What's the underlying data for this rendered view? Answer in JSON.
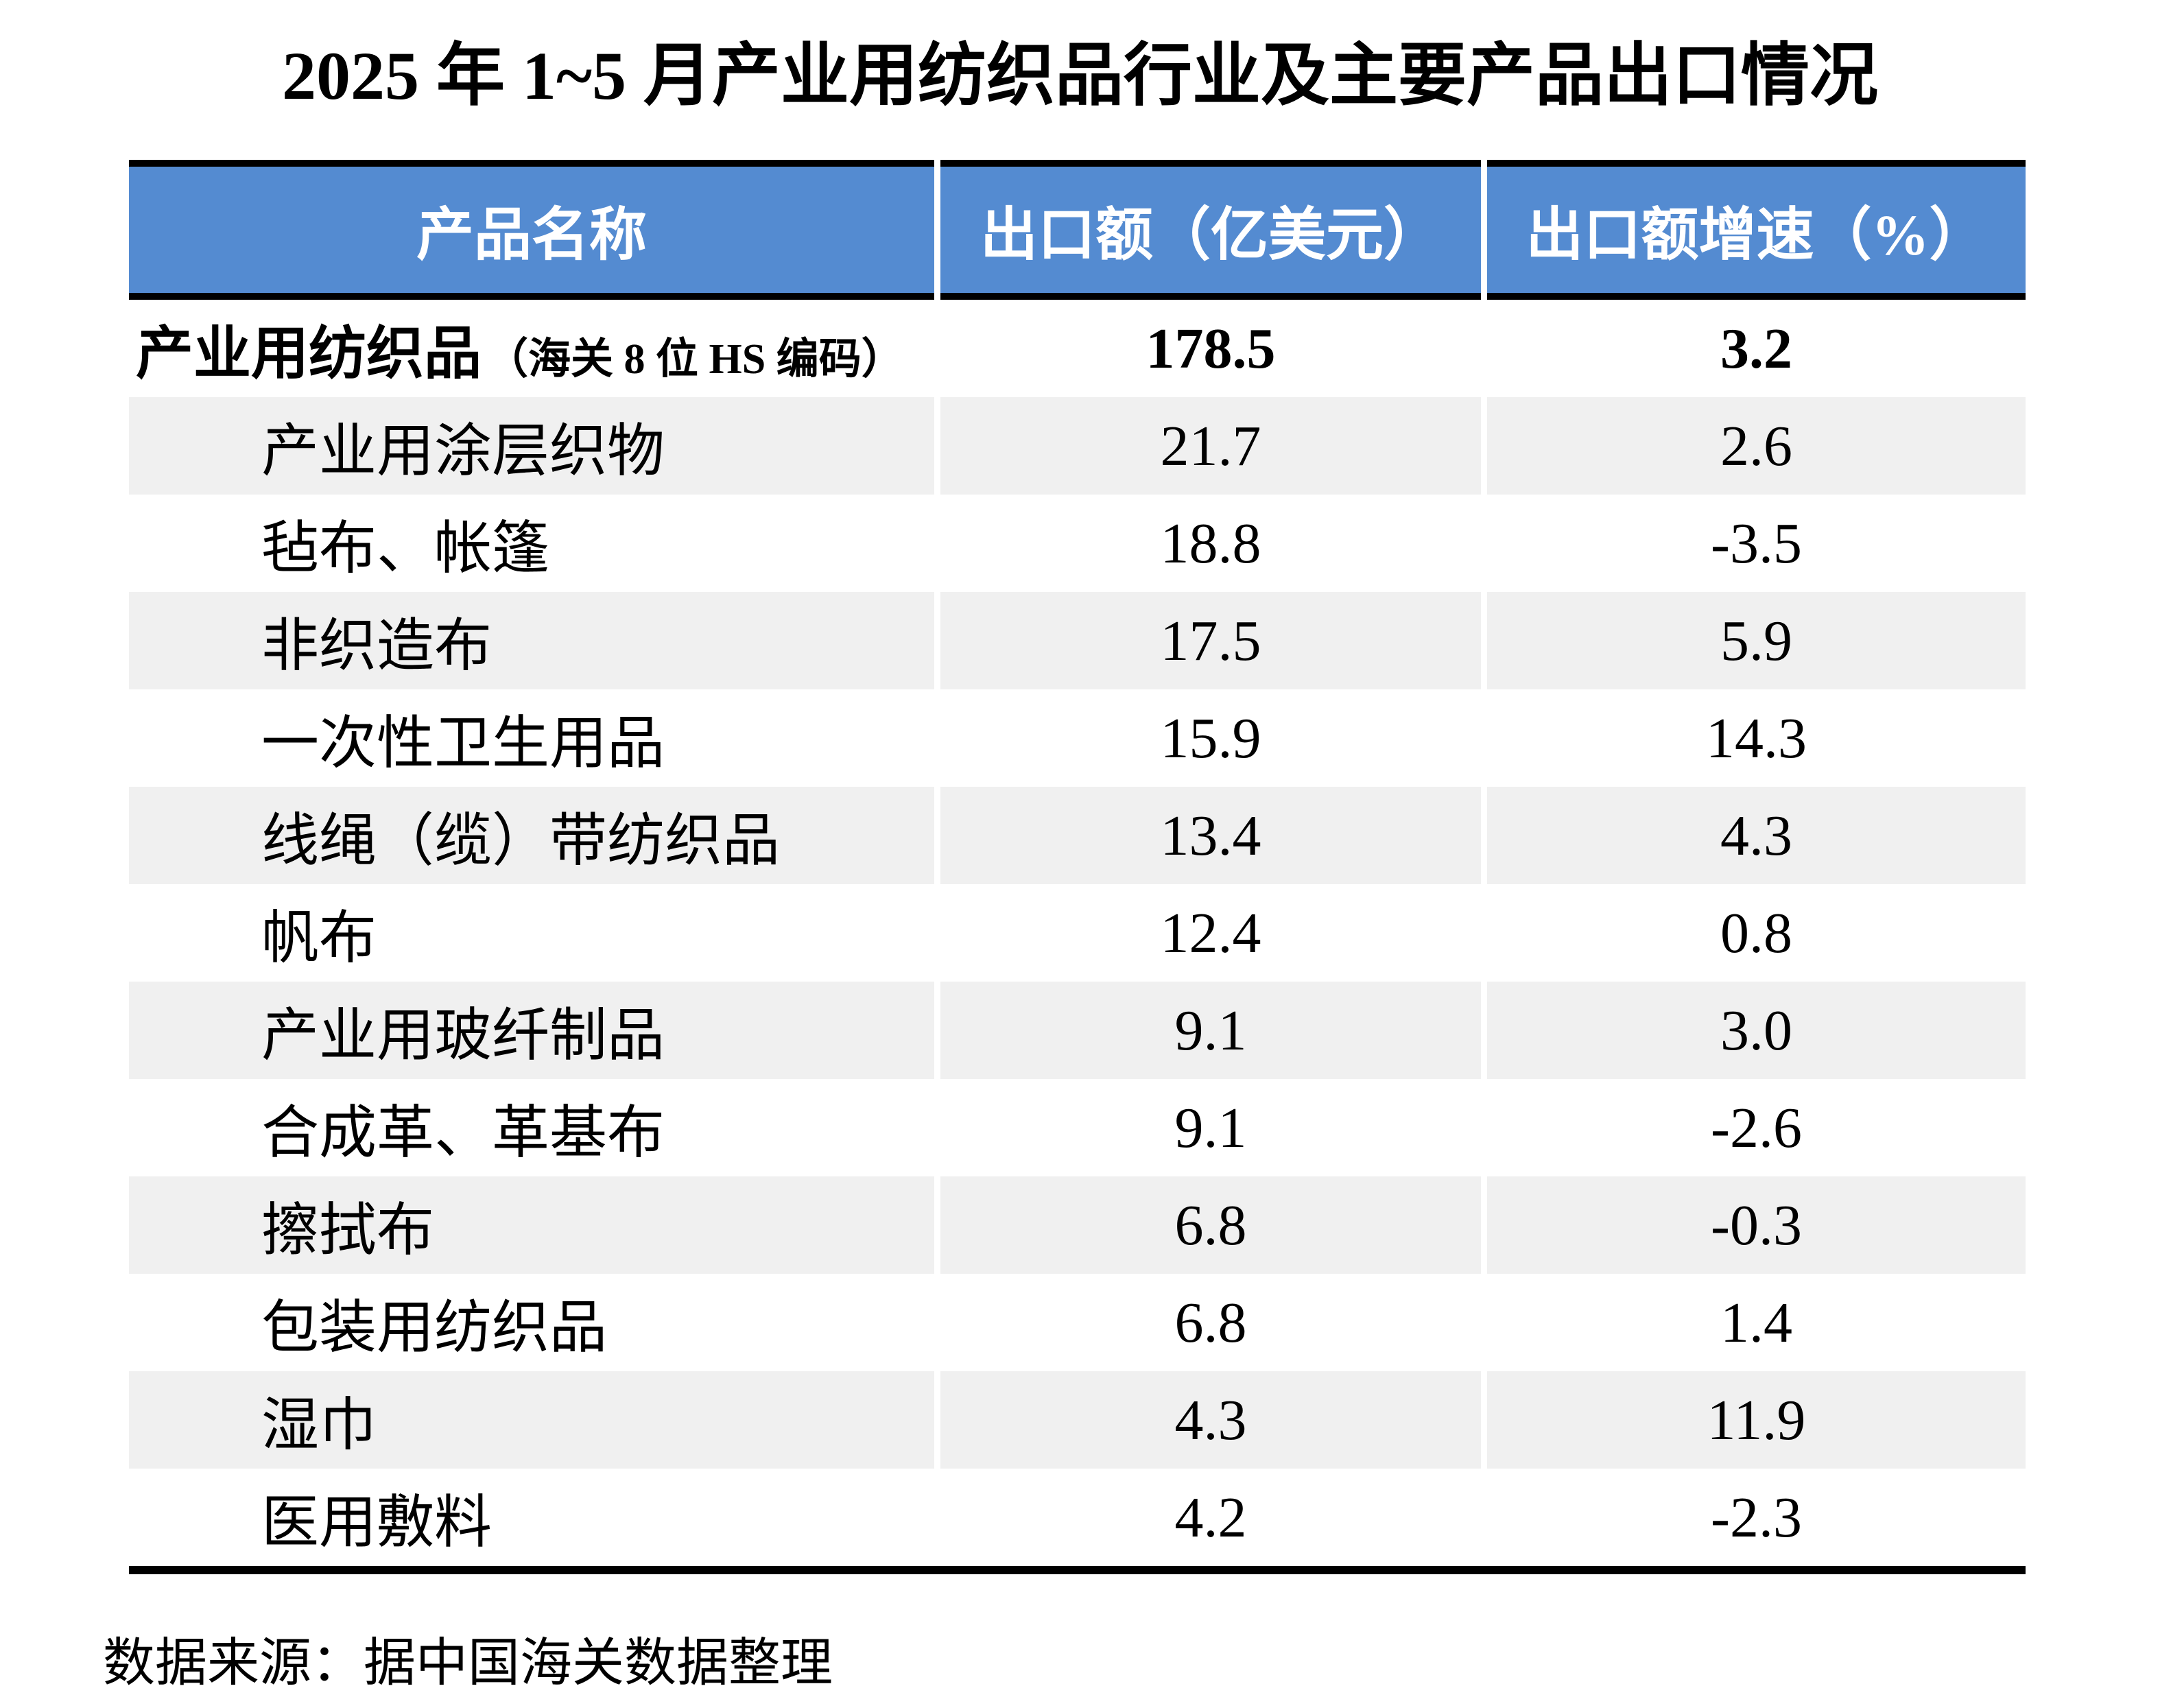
{
  "chart_data": {
    "type": "table",
    "title": "2025 年 1~5 月产业用纺织品行业及主要产品出口情况",
    "columns": [
      "产品名称",
      "出口额（亿美元）",
      "出口额增速（%）"
    ],
    "total_row": {
      "name": "产业用纺织品",
      "note": "（海关 8 位 HS 编码）",
      "export_value": "178.5",
      "growth": "3.2"
    },
    "rows": [
      {
        "name": "产业用涂层织物",
        "export_value": "21.7",
        "growth": "2.6"
      },
      {
        "name": "毡布、帐篷",
        "export_value": "18.8",
        "growth": "-3.5"
      },
      {
        "name": "非织造布",
        "export_value": "17.5",
        "growth": "5.9"
      },
      {
        "name": "一次性卫生用品",
        "export_value": "15.9",
        "growth": "14.3"
      },
      {
        "name": "线绳（缆）带纺织品",
        "export_value": "13.4",
        "growth": "4.3"
      },
      {
        "name": "帆布",
        "export_value": "12.4",
        "growth": "0.8"
      },
      {
        "name": "产业用玻纤制品",
        "export_value": "9.1",
        "growth": "3.0"
      },
      {
        "name": "合成革、革基布",
        "export_value": "9.1",
        "growth": "-2.6"
      },
      {
        "name": "擦拭布",
        "export_value": "6.8",
        "growth": "-0.3"
      },
      {
        "name": "包装用纺织品",
        "export_value": "6.8",
        "growth": "1.4"
      },
      {
        "name": "湿巾",
        "export_value": "4.3",
        "growth": "11.9"
      },
      {
        "name": "医用敷料",
        "export_value": "4.2",
        "growth": "-2.3"
      }
    ],
    "source": "数据来源：据中国海关数据整理",
    "layout": {
      "alternating_row_shading": true,
      "header_alignment": "center",
      "value_alignment": "center"
    }
  },
  "colors": {
    "header_bg": "#548BD1",
    "header_text": "#FFFFFF",
    "alt_row_bg": "#F0F0F0",
    "border": "#000000",
    "text": "#000000"
  }
}
